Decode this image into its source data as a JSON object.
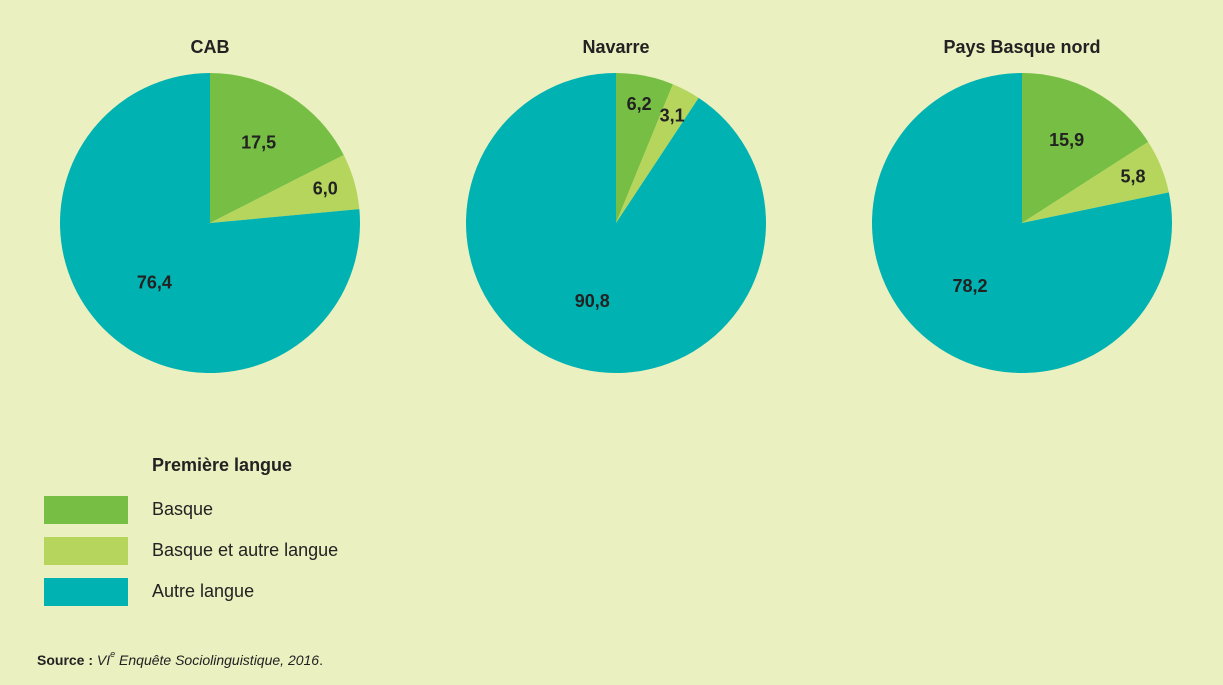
{
  "chart_data": [
    {
      "type": "pie",
      "title": "CAB",
      "values": [
        17.5,
        6.0,
        76.4
      ],
      "value_labels": [
        "17,5",
        "6,0",
        "76,4"
      ]
    },
    {
      "type": "pie",
      "title": "Navarre",
      "values": [
        6.2,
        3.1,
        90.8
      ],
      "value_labels": [
        "6,2",
        "3,1",
        "90,8"
      ]
    },
    {
      "type": "pie",
      "title": "Pays Basque nord",
      "values": [
        15.9,
        5.8,
        78.2
      ],
      "value_labels": [
        "15,9",
        "5,8",
        "78,2"
      ]
    }
  ],
  "legend": {
    "title": "Première langue",
    "labels": [
      "Basque",
      "Basque et autre langue",
      "Autre langue"
    ],
    "colors": [
      "#77bf44",
      "#b6d55c",
      "#00b2b1"
    ]
  },
  "source": {
    "label": "Source :",
    "title": "VI",
    "sup": "e",
    "rest": " Enquête Sociolinguistique, 2016",
    "end": "."
  }
}
